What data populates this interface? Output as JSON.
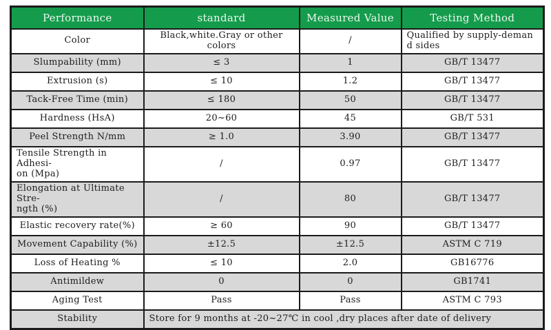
{
  "colors": {
    "header_bg": "#149c4c",
    "header_text": "#eef7ee",
    "row_alt": "#d8d8d8",
    "row_base": "#ffffff",
    "border": "#1a1a1a"
  },
  "table": {
    "columns": [
      "Performance",
      "standard",
      "Measured Value",
      "Testing Method"
    ],
    "rows": [
      {
        "performance": "Color",
        "standard": "Black,white.Gray or other colors",
        "measured": "/",
        "method": "Qualified by supply-deman\nd sides"
      },
      {
        "performance": "Slumpability (mm)",
        "standard": "≤ 3",
        "measured": "1",
        "method": "GB/T 13477"
      },
      {
        "performance": "Extrusion (s)",
        "standard": "≤ 10",
        "measured": "1.2",
        "method": "GB/T 13477"
      },
      {
        "performance": "Tack-Free Time (min)",
        "standard": "≤ 180",
        "measured": "50",
        "method": "GB/T 13477"
      },
      {
        "performance": "Hardness (HsA)",
        "standard": "20~60",
        "measured": "45",
        "method": "GB/T 531"
      },
      {
        "performance": "Peel Strength N/mm",
        "standard": "≥ 1.0",
        "measured": "3.90",
        "method": "GB/T 13477"
      },
      {
        "performance": "Tensile Strength in Adhesi-\non (Mpa)",
        "standard": "/",
        "measured": "0.97",
        "method": "GB/T 13477"
      },
      {
        "performance": "Elongation at Ultimate Stre-\nngth (%)",
        "standard": "/",
        "measured": "80",
        "method": "GB/T 13477"
      },
      {
        "performance": "Elastic recovery rate(%)",
        "standard": "≥ 60",
        "measured": "90",
        "method": "GB/T 13477"
      },
      {
        "performance": "Movement Capability (%)",
        "standard": "±12.5",
        "measured": "±12.5",
        "method": "ASTM C 719"
      },
      {
        "performance": "Loss of Heating %",
        "standard": "≤ 10",
        "measured": "2.0",
        "method": "GB16776"
      },
      {
        "performance": "Antimildew",
        "standard": "0",
        "measured": "0",
        "method": "GB1741"
      },
      {
        "performance": "Aging Test",
        "standard": "Pass",
        "measured": "Pass",
        "method": "ASTM C 793"
      }
    ],
    "merged_row": {
      "performance": "Stability",
      "content": "Store for 9 months at -20~27℃  in cool ,dry places after date of delivery"
    }
  }
}
